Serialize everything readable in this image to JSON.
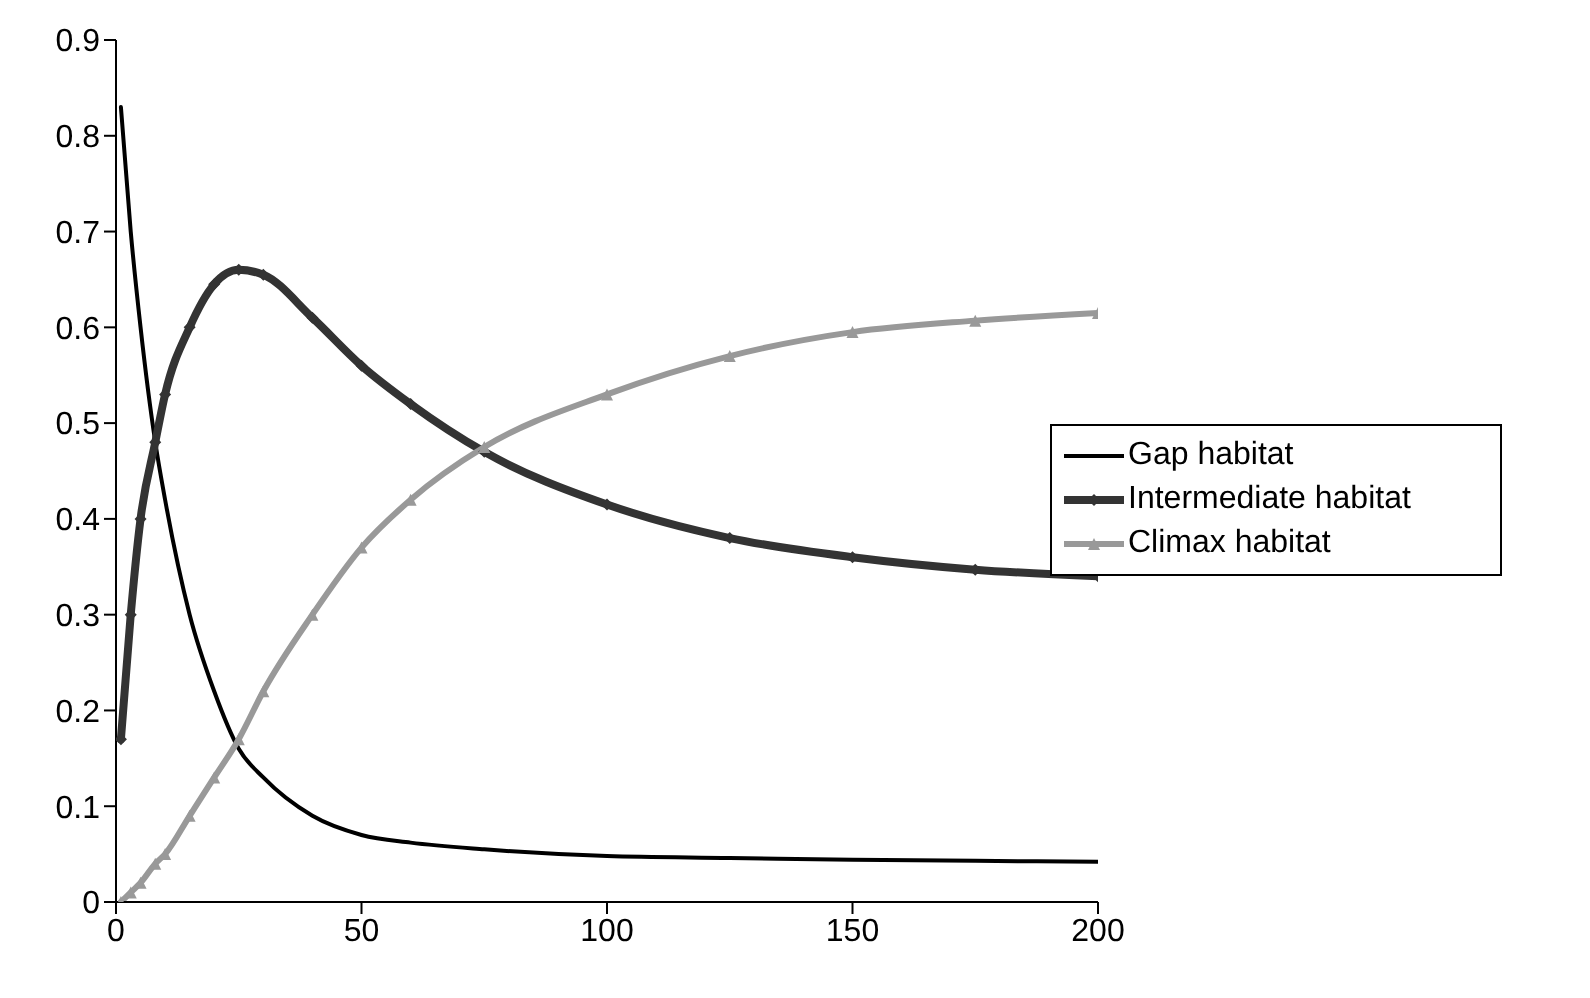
{
  "chart_data": {
    "type": "line",
    "xlim": [
      0,
      200
    ],
    "xticks": [
      0,
      50,
      100,
      150,
      200
    ],
    "ylim": [
      0,
      0.9
    ],
    "yticks": [
      0,
      0.1,
      0.2,
      0.3,
      0.4,
      0.5,
      0.6,
      0.7,
      0.8,
      0.9
    ],
    "grid": false,
    "legend": "right",
    "x": [
      1,
      3,
      5,
      8,
      10,
      15,
      20,
      25,
      30,
      40,
      50,
      60,
      75,
      100,
      125,
      150,
      175,
      200
    ],
    "series": [
      {
        "name": "Gap habitat",
        "color": "#000000",
        "marker": "none",
        "values": [
          0.83,
          0.7,
          0.6,
          0.48,
          0.42,
          0.3,
          0.22,
          0.16,
          0.13,
          0.09,
          0.07,
          0.062,
          0.055,
          0.048,
          0.046,
          0.044,
          0.043,
          0.042
        ]
      },
      {
        "name": "Intermediate habitat",
        "color": "#333333",
        "marker": "diamond",
        "values": [
          0.17,
          0.3,
          0.4,
          0.48,
          0.53,
          0.6,
          0.645,
          0.66,
          0.655,
          0.61,
          0.56,
          0.52,
          0.47,
          0.415,
          0.38,
          0.36,
          0.347,
          0.34
        ]
      },
      {
        "name": "Climax habitat",
        "color": "#999999",
        "marker": "triangle",
        "values": [
          0,
          0.01,
          0.02,
          0.04,
          0.05,
          0.09,
          0.13,
          0.17,
          0.22,
          0.3,
          0.37,
          0.42,
          0.475,
          0.53,
          0.57,
          0.595,
          0.607,
          0.615
        ]
      }
    ]
  }
}
